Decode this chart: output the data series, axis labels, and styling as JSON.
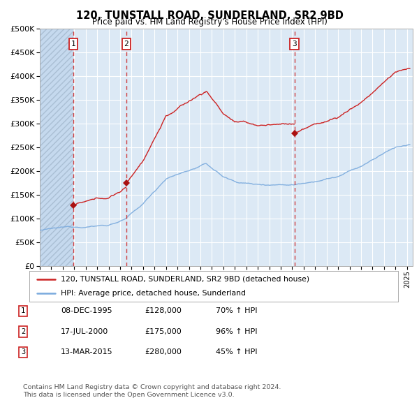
{
  "title": "120, TUNSTALL ROAD, SUNDERLAND, SR2 9BD",
  "subtitle": "Price paid vs. HM Land Registry's House Price Index (HPI)",
  "ylim": [
    0,
    500000
  ],
  "yticks": [
    0,
    50000,
    100000,
    150000,
    200000,
    250000,
    300000,
    350000,
    400000,
    450000,
    500000
  ],
  "xlim_start": 1993.0,
  "xlim_end": 2025.5,
  "background_color": "#ffffff",
  "plot_bg_color": "#dce9f5",
  "grid_color": "#ffffff",
  "hpi_line_color": "#7aaadd",
  "price_line_color": "#cc2222",
  "sale_marker_color": "#aa1111",
  "vline_color": "#cc2222",
  "hatch_bg_color": "#c5d9ee",
  "transactions": [
    {
      "num": 1,
      "date_str": "08-DEC-1995",
      "year": 1995.92,
      "price": 128000,
      "pct": "70%",
      "dir": "↑"
    },
    {
      "num": 2,
      "date_str": "17-JUL-2000",
      "year": 2000.54,
      "price": 175000,
      "pct": "96%",
      "dir": "↑"
    },
    {
      "num": 3,
      "date_str": "13-MAR-2015",
      "year": 2015.19,
      "price": 280000,
      "pct": "45%",
      "dir": "↑"
    }
  ],
  "legend_line1": "120, TUNSTALL ROAD, SUNDERLAND, SR2 9BD (detached house)",
  "legend_line2": "HPI: Average price, detached house, Sunderland",
  "footnote1": "Contains HM Land Registry data © Crown copyright and database right 2024.",
  "footnote2": "This data is licensed under the Open Government Licence v3.0."
}
